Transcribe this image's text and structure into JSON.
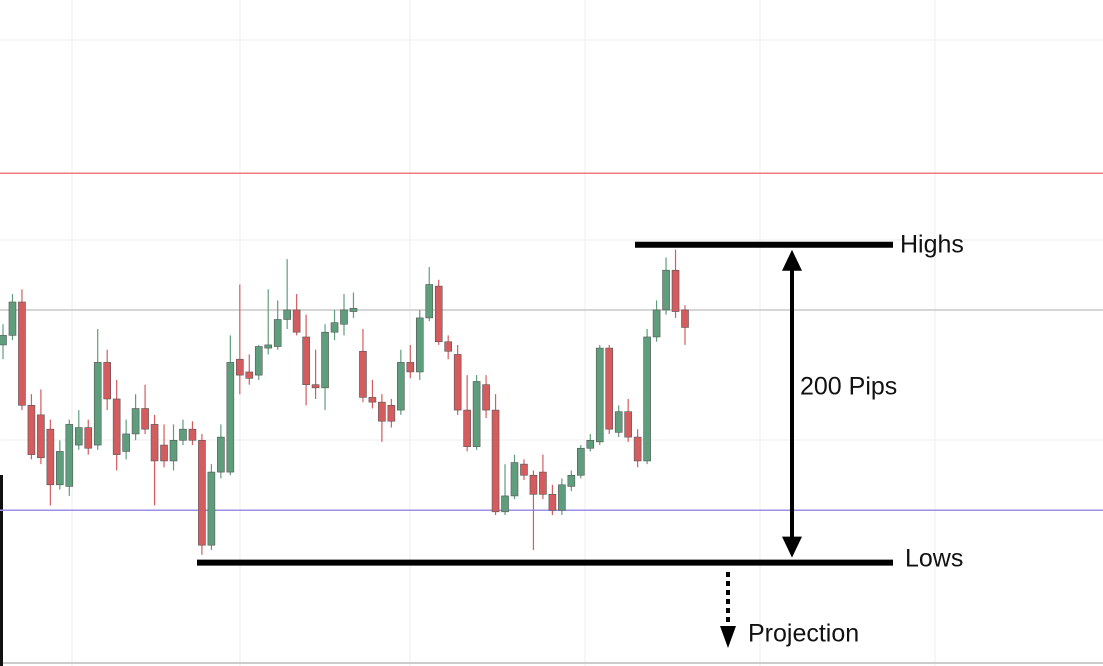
{
  "chart_data": {
    "type": "candlestick",
    "up_color": "#5f9e7c",
    "down_color": "#d45c5f",
    "ylim": [
      -65,
      354
    ],
    "open": [
      137,
      143,
      164,
      99,
      93,
      84,
      49,
      48,
      74,
      85,
      74,
      126,
      103,
      70,
      81,
      97,
      87,
      74,
      64,
      77,
      84,
      77,
      11,
      57,
      57,
      128,
      120,
      118,
      135,
      136,
      153,
      159,
      142,
      112,
      110,
      145,
      150,
      158,
      133,
      104,
      101,
      99,
      96,
      126,
      120,
      154,
      174,
      139,
      131,
      96,
      73,
      112,
      96,
      32,
      42,
      62,
      55,
      57,
      43,
      33,
      48,
      55,
      72,
      76,
      135,
      82,
      95,
      79,
      64,
      142,
      159,
      184,
      159
    ],
    "high": [
      150,
      169,
      172,
      106,
      109,
      90,
      77,
      90,
      96,
      90,
      147,
      134,
      115,
      90,
      106,
      112,
      93,
      87,
      87,
      90,
      89,
      81,
      62,
      87,
      143,
      175,
      131,
      137,
      172,
      165,
      191,
      169,
      156,
      134,
      150,
      159,
      169,
      170,
      147,
      115,
      106,
      103,
      134,
      137,
      159,
      186,
      178,
      143,
      137,
      118,
      118,
      118,
      106,
      62,
      68,
      65,
      58,
      68,
      49,
      53,
      58,
      74,
      81,
      137,
      137,
      99,
      103,
      84,
      147,
      165,
      192,
      197,
      162
    ],
    "low": [
      128,
      140,
      96,
      65,
      62,
      36,
      46,
      42,
      71,
      68,
      71,
      96,
      58,
      65,
      77,
      81,
      36,
      60,
      58,
      74,
      74,
      5,
      8,
      53,
      55,
      106,
      112,
      115,
      131,
      134,
      147,
      143,
      99,
      103,
      96,
      140,
      143,
      154,
      101,
      97,
      76,
      85,
      93,
      116,
      115,
      152,
      137,
      128,
      93,
      70,
      71,
      91,
      30,
      30,
      40,
      52,
      8,
      40,
      30,
      30,
      45,
      53,
      70,
      74,
      81,
      79,
      76,
      60,
      62,
      139,
      156,
      154,
      137
    ],
    "close": [
      143,
      164,
      99,
      68,
      66,
      49,
      70,
      87,
      85,
      72,
      126,
      103,
      68,
      81,
      97,
      84,
      64,
      64,
      77,
      84,
      77,
      11,
      57,
      79,
      126,
      118,
      116,
      136,
      137,
      153,
      159,
      145,
      112,
      110,
      145,
      151,
      159,
      160,
      104,
      101,
      89,
      89,
      126,
      120,
      154,
      175,
      139,
      133,
      96,
      73,
      114,
      96,
      32,
      42,
      63,
      55,
      43,
      43,
      33,
      49,
      55,
      72,
      77,
      135,
      84,
      95,
      79,
      64,
      142,
      159,
      184,
      158,
      148
    ],
    "lines": [
      {
        "value": 245,
        "color": "#ef7a82"
      },
      {
        "value": 159,
        "color": "#c9c9c9"
      },
      {
        "value": 33,
        "color": "#9a92e6"
      }
    ],
    "levels": [
      {
        "label": "Highs",
        "value": 200
      },
      {
        "label": "Lows",
        "value": 0
      }
    ],
    "range_label": "200 Pips",
    "projection_label": "Projection"
  }
}
